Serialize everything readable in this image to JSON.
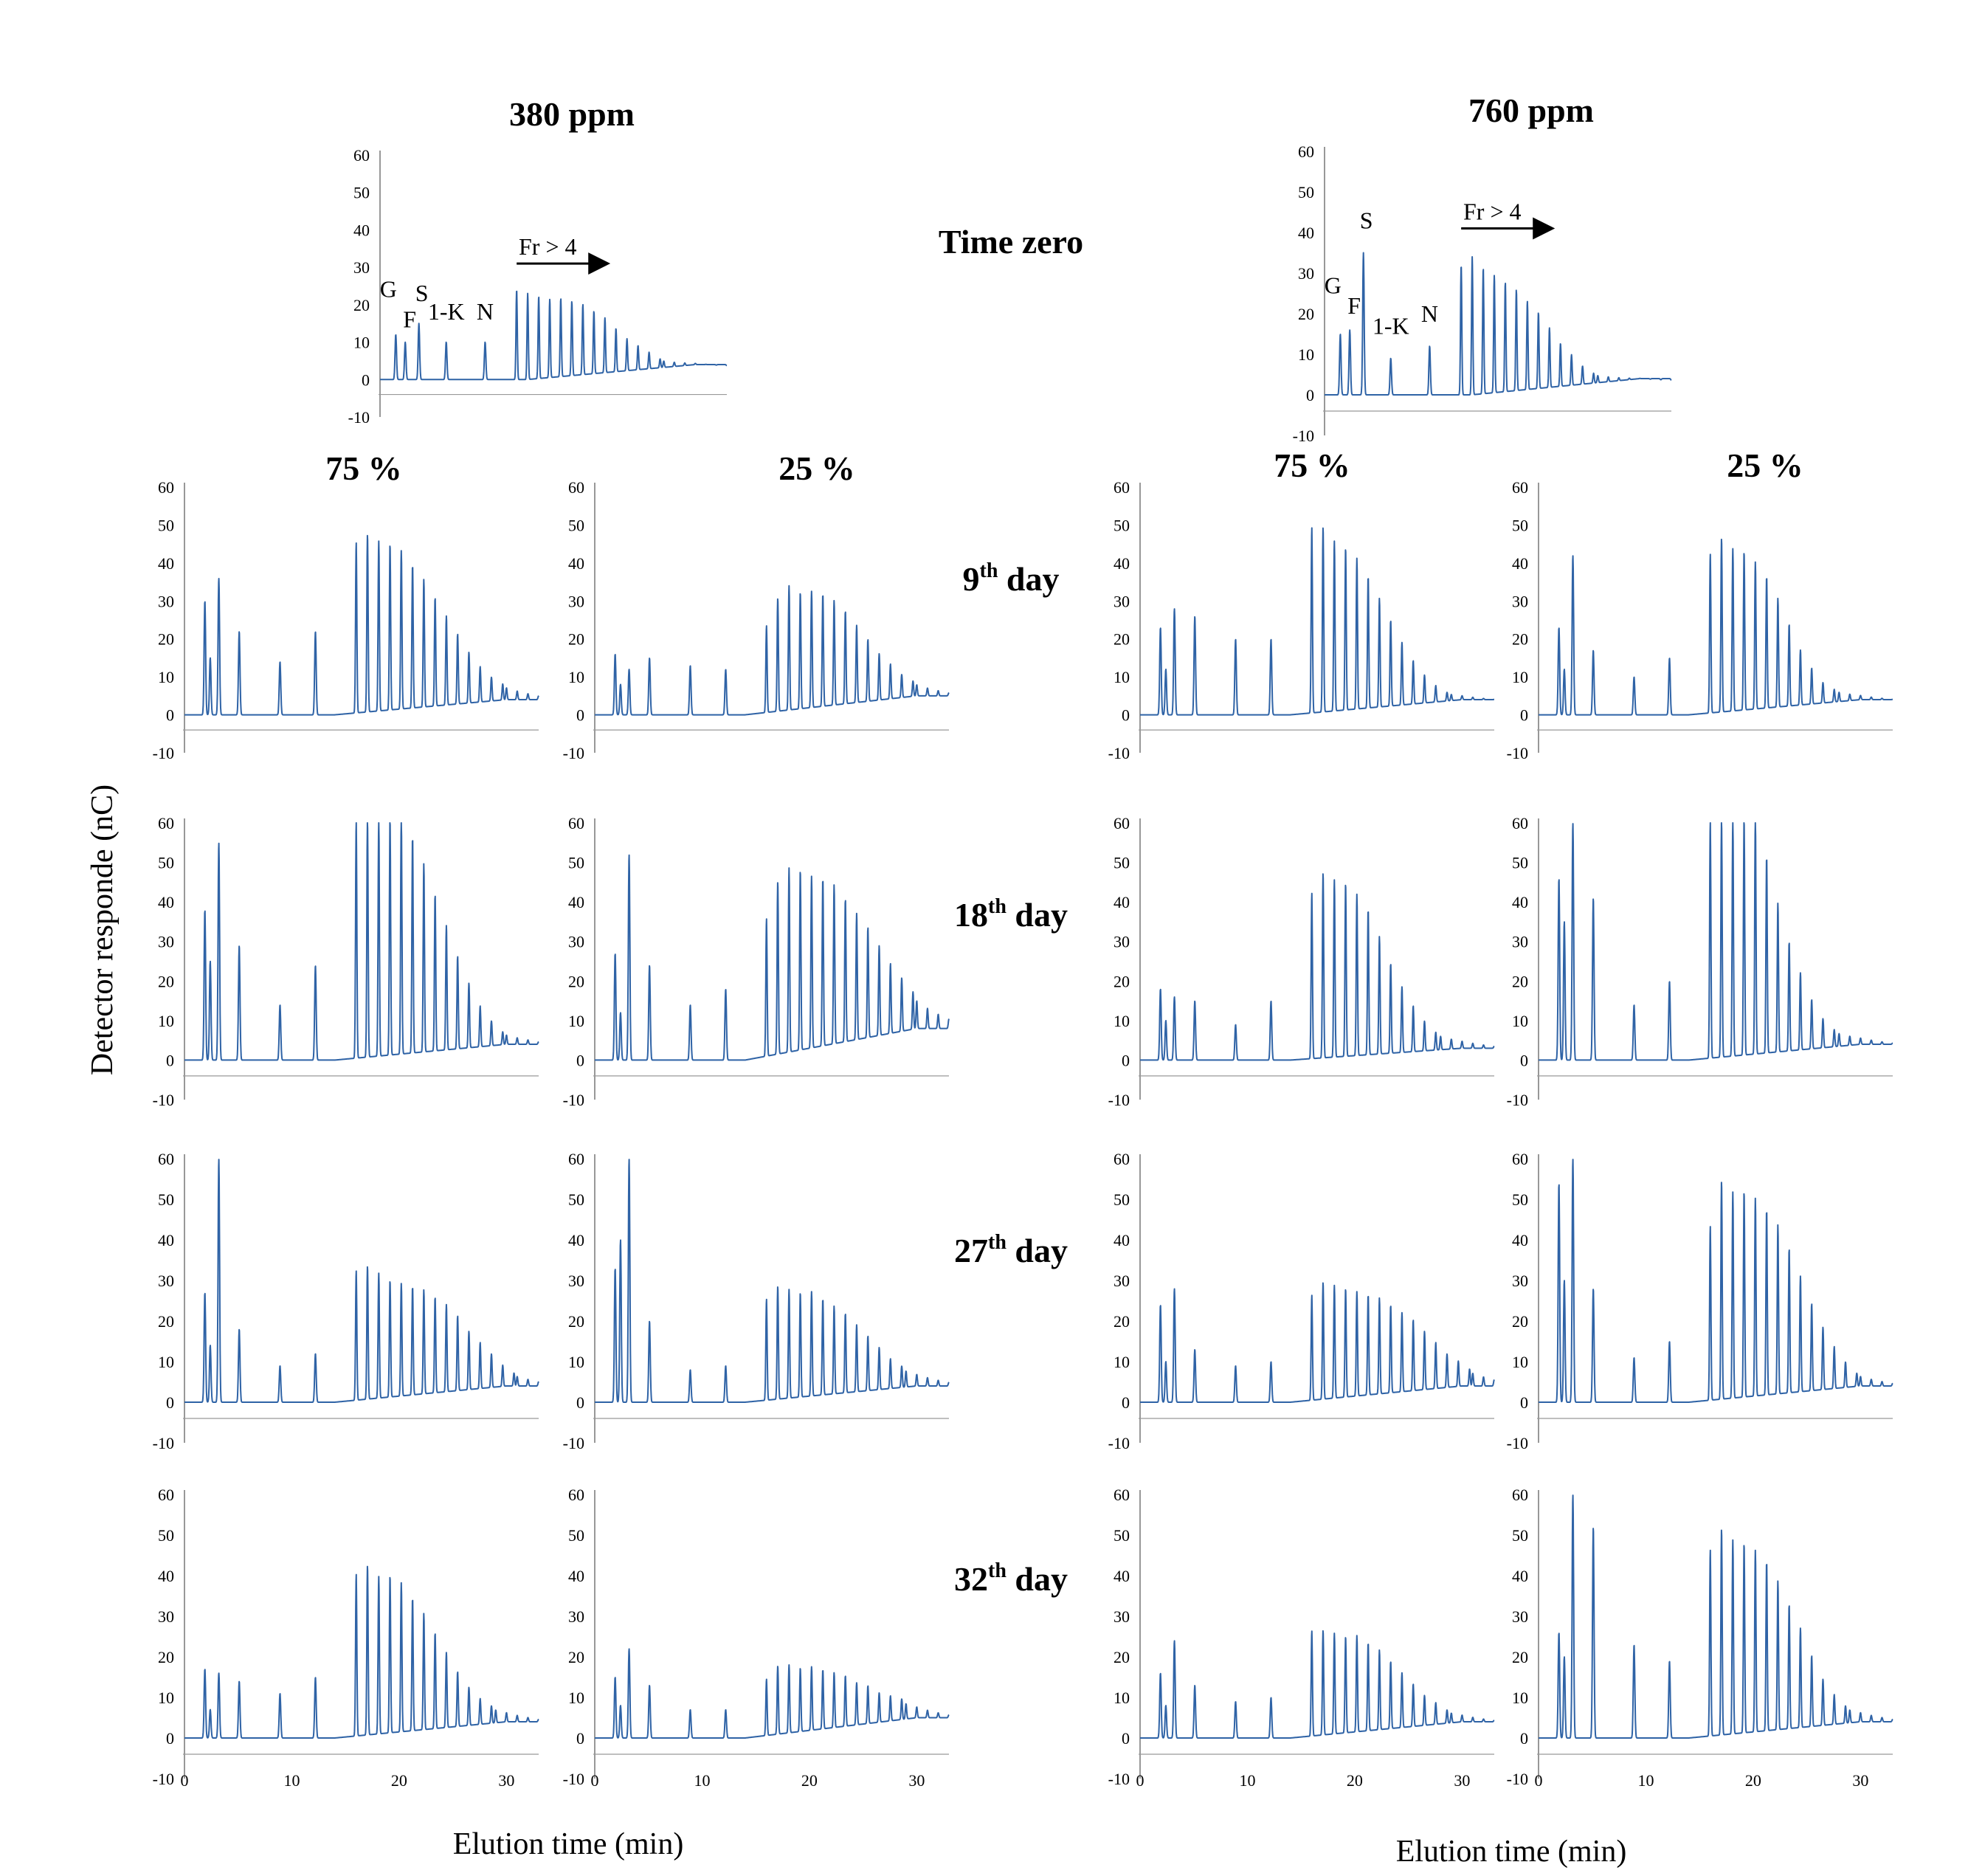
{
  "figure": {
    "concentrations": [
      "380 ppm",
      "760 ppm"
    ],
    "humidity_labels": [
      "75 %",
      "25 %"
    ],
    "time_zero_label": "Time zero",
    "day_labels": [
      {
        "num": "9",
        "sup": "th",
        "rest": " day"
      },
      {
        "num": "18",
        "sup": "th",
        "rest": " day"
      },
      {
        "num": "27",
        "sup": "th",
        "rest": " day"
      },
      {
        "num": "32",
        "sup": "th",
        "rest": " day"
      }
    ],
    "y_axis_label": "Detector responde (nC)",
    "x_axis_label": "Elution time (min)",
    "y_ticks": [
      "60",
      "50",
      "40",
      "30",
      "20",
      "10",
      "0",
      "-10"
    ],
    "x_ticks": [
      "0",
      "10",
      "20",
      "30"
    ],
    "peak_labels": [
      "G",
      "F",
      "S",
      "1-K",
      "N"
    ],
    "fr_label": "Fr > 4",
    "trace_color": "#2f63a6"
  },
  "chart_data": [
    {
      "type": "line",
      "title": "380 ppm",
      "subtitle": "Time zero",
      "xlabel": "Elution time (min)",
      "ylabel": "Detector responde (nC)",
      "ylim": [
        -10,
        60
      ],
      "xlim": [
        0,
        33
      ],
      "peaks": {
        "G": 12,
        "F": 10,
        "S": 15,
        "1-K": 10,
        "N": 10
      },
      "fructan_series": [
        24,
        23,
        22,
        21,
        21,
        20,
        19,
        17,
        15,
        12,
        9,
        7,
        5,
        3
      ],
      "end_baseline": 4
    },
    {
      "type": "line",
      "title": "760 ppm",
      "subtitle": "Time zero",
      "xlabel": "Elution time (min)",
      "ylabel": "Detector responde (nC)",
      "ylim": [
        -10,
        60
      ],
      "xlim": [
        0,
        33
      ],
      "peaks": {
        "G": 15,
        "F": 16,
        "S": 35,
        "1-K": 9,
        "N": 12
      },
      "fructan_series": [
        32,
        34,
        31,
        29,
        27,
        25,
        22,
        19,
        15,
        11,
        8,
        5,
        3
      ],
      "end_baseline": 4
    },
    {
      "type": "line",
      "title": "380 ppm, 75 %, 9th day",
      "ylim": [
        -10,
        60
      ],
      "xlim": [
        0,
        33
      ],
      "peaks": {
        "G": 30,
        "F": 15,
        "S": 36,
        "1-K": 22,
        "N": 14,
        "12 min": 22
      },
      "fructan_series": [
        45,
        47,
        45,
        44,
        42,
        38,
        34,
        29,
        24,
        19,
        14,
        10,
        7,
        5
      ],
      "end_baseline": 4
    },
    {
      "type": "line",
      "title": "380 ppm, 25 %, 9th day",
      "ylim": [
        -10,
        60
      ],
      "xlim": [
        0,
        33
      ],
      "peaks": {
        "G": 16,
        "F": 8,
        "S": 12,
        "1-K": 15,
        "N": 13,
        "12 min": 12
      },
      "fructan_series": [
        23,
        30,
        33,
        31,
        31,
        30,
        28,
        25,
        21,
        17,
        13,
        10,
        7,
        5
      ],
      "end_baseline": 5
    },
    {
      "type": "line",
      "title": "760 ppm, 75 %, 9th day",
      "ylim": [
        -10,
        60
      ],
      "xlim": [
        0,
        33
      ],
      "peaks": {
        "G": 23,
        "F": 12,
        "S": 28,
        "1-K": 26,
        "N": 20,
        "12 min": 20
      },
      "fructan_series": [
        49,
        49,
        45,
        43,
        40,
        35,
        29,
        23,
        17,
        12,
        8,
        5,
        3
      ],
      "end_baseline": 4
    },
    {
      "type": "line",
      "title": "760 ppm, 25 %, 9th day",
      "ylim": [
        -10,
        60
      ],
      "xlim": [
        0,
        33
      ],
      "peaks": {
        "G": 23,
        "F": 12,
        "S": 42,
        "1-K": 17,
        "N": 10,
        "12 min": 15
      },
      "fructan_series": [
        42,
        46,
        43,
        42,
        39,
        35,
        29,
        22,
        15,
        10,
        6,
        4
      ],
      "end_baseline": 4
    },
    {
      "type": "line",
      "title": "380 ppm, 75 %, 18th day",
      "ylim": [
        -10,
        60
      ],
      "xlim": [
        0,
        33
      ],
      "peaks": {
        "G": 38,
        "F": 25,
        "S": 55,
        "1-K": 29,
        "N": 14,
        "12 min": 24
      },
      "fructan_series": [
        60,
        60,
        60,
        60,
        60,
        55,
        48,
        40,
        32,
        24,
        17,
        11,
        7,
        4
      ],
      "end_baseline": 4
    },
    {
      "type": "line",
      "title": "380 ppm, 25 %, 18th day",
      "ylim": [
        -10,
        60
      ],
      "xlim": [
        0,
        33
      ],
      "peaks": {
        "G": 27,
        "F": 12,
        "S": 52,
        "1-K": 24,
        "N": 14,
        "12 min": 18
      },
      "fructan_series": [
        35,
        44,
        47,
        46,
        44,
        43,
        41,
        37,
        33,
        29,
        24,
        19,
        15,
        11
      ],
      "end_baseline": 8
    },
    {
      "type": "line",
      "title": "760 ppm, 75 %, 18th day",
      "ylim": [
        -10,
        60
      ],
      "xlim": [
        0,
        33
      ],
      "peaks": {
        "G": 18,
        "F": 10,
        "S": 16,
        "1-K": 15,
        "N": 9,
        "12 min": 15
      },
      "fructan_series": [
        42,
        47,
        45,
        44,
        41,
        37,
        30,
        23,
        17,
        12,
        8,
        5
      ],
      "end_baseline": 3
    },
    {
      "type": "line",
      "title": "760 ppm, 25 %, 18th day",
      "ylim": [
        -10,
        60
      ],
      "xlim": [
        0,
        33
      ],
      "peaks": {
        "G": 46,
        "F": 35,
        "S": 60,
        "1-K": 41,
        "N": 14,
        "12 min": 20
      },
      "fructan_series": [
        60,
        60,
        60,
        60,
        60,
        50,
        38,
        28,
        20,
        13,
        8,
        5
      ],
      "end_baseline": 4
    },
    {
      "type": "line",
      "title": "380 ppm, 75 %, 27th day",
      "ylim": [
        -10,
        60
      ],
      "xlim": [
        0,
        33
      ],
      "peaks": {
        "G": 27,
        "F": 14,
        "S": 60,
        "1-K": 18,
        "N": 9,
        "12 min": 12
      },
      "fructan_series": [
        32,
        33,
        31,
        29,
        28,
        27,
        26,
        24,
        22,
        19,
        15,
        12,
        9,
        6,
        4
      ],
      "end_baseline": 4
    },
    {
      "type": "line",
      "title": "380 ppm, 25 %, 27th day",
      "ylim": [
        -10,
        60
      ],
      "xlim": [
        0,
        33
      ],
      "peaks": {
        "G": 33,
        "F": 40,
        "S": 60,
        "1-K": 20,
        "N": 8,
        "12 min": 9
      },
      "fructan_series": [
        25,
        28,
        27,
        26,
        26,
        24,
        22,
        20,
        17,
        14,
        11,
        8,
        6
      ],
      "end_baseline": 4
    },
    {
      "type": "line",
      "title": "760 ppm, 75 %, 27th day",
      "ylim": [
        -10,
        60
      ],
      "xlim": [
        0,
        33
      ],
      "peaks": {
        "G": 24,
        "F": 10,
        "S": 28,
        "1-K": 13,
        "N": 9,
        "12 min": 10
      },
      "fructan_series": [
        26,
        29,
        28,
        27,
        26,
        25,
        24,
        22,
        20,
        18,
        15,
        12,
        9,
        7,
        5
      ],
      "end_baseline": 4
    },
    {
      "type": "line",
      "title": "760 ppm, 25 %, 27th day",
      "ylim": [
        -10,
        60
      ],
      "xlim": [
        0,
        33
      ],
      "peaks": {
        "G": 54,
        "F": 30,
        "S": 60,
        "1-K": 28,
        "N": 11,
        "12 min": 15
      },
      "fructan_series": [
        43,
        54,
        51,
        51,
        49,
        46,
        42,
        36,
        29,
        22,
        16,
        11,
        7,
        4
      ],
      "end_baseline": 4
    },
    {
      "type": "line",
      "title": "380 ppm, 75 %, 32nd day",
      "ylim": [
        -10,
        60
      ],
      "xlim": [
        0,
        33
      ],
      "peaks": {
        "G": 17,
        "F": 7,
        "S": 16,
        "1-K": 14,
        "N": 11,
        "12 min": 15
      },
      "fructan_series": [
        40,
        42,
        39,
        39,
        37,
        33,
        29,
        24,
        19,
        14,
        10,
        7,
        5
      ],
      "end_baseline": 4
    },
    {
      "type": "line",
      "title": "380 ppm, 25 %, 32nd day",
      "ylim": [
        -10,
        60
      ],
      "xlim": [
        0,
        33
      ],
      "peaks": {
        "G": 15,
        "F": 8,
        "S": 22,
        "1-K": 13,
        "N": 7,
        "12 min": 7
      },
      "fructan_series": [
        14,
        17,
        17,
        16,
        16,
        15,
        14,
        13,
        11,
        10,
        8,
        7,
        6
      ],
      "end_baseline": 5
    },
    {
      "type": "line",
      "title": "760 ppm, 75 %, 32nd day",
      "ylim": [
        -10,
        60
      ],
      "xlim": [
        0,
        33
      ],
      "peaks": {
        "G": 16,
        "F": 8,
        "S": 24,
        "1-K": 13,
        "N": 9,
        "12 min": 10
      },
      "fructan_series": [
        26,
        26,
        25,
        24,
        24,
        22,
        20,
        17,
        14,
        11,
        8,
        6,
        4
      ],
      "end_baseline": 4
    },
    {
      "type": "line",
      "title": "760 ppm, 25 %, 32nd day",
      "ylim": [
        -10,
        60
      ],
      "xlim": [
        0,
        33
      ],
      "peaks": {
        "G": 26,
        "F": 20,
        "S": 60,
        "1-K": 52,
        "N": 23,
        "12 min": 19
      },
      "fructan_series": [
        46,
        51,
        48,
        47,
        45,
        42,
        37,
        31,
        25,
        18,
        12,
        8,
        5
      ],
      "end_baseline": 4
    }
  ]
}
